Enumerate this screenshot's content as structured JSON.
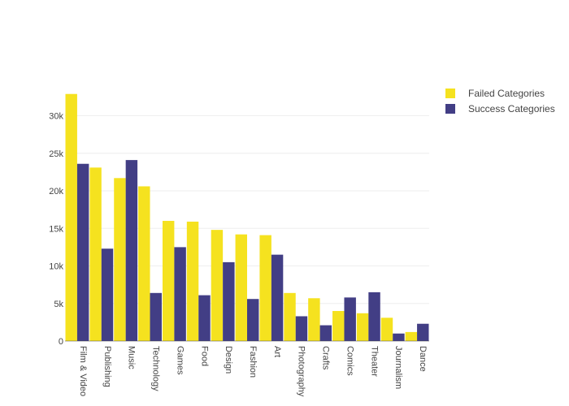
{
  "chart_data": {
    "type": "bar",
    "categories": [
      "Film & Video",
      "Publishing",
      "Music",
      "Technology",
      "Games",
      "Food",
      "Design",
      "Fashion",
      "Art",
      "Photography",
      "Crafts",
      "Comics",
      "Theater",
      "Journalism",
      "Dance"
    ],
    "series": [
      {
        "name": "Failed Categories",
        "color": "#f5e21f",
        "values": [
          32900,
          23100,
          21700,
          20600,
          16000,
          15900,
          14800,
          14200,
          14100,
          6400,
          5700,
          4000,
          3700,
          3100,
          1200
        ]
      },
      {
        "name": "Success Categories",
        "color": "#423e85",
        "values": [
          23600,
          12300,
          24100,
          6400,
          12500,
          6100,
          10500,
          5600,
          11500,
          3300,
          2100,
          5800,
          6500,
          1000,
          2300
        ]
      }
    ],
    "yticks": [
      0,
      5000,
      10000,
      15000,
      20000,
      25000,
      30000
    ],
    "ytick_labels": [
      "0",
      "5k",
      "10k",
      "15k",
      "20k",
      "25k",
      "30k"
    ],
    "ylim": [
      0,
      34600
    ],
    "grid": true,
    "legend_position": "top-right",
    "title": "",
    "xlabel": "",
    "ylabel": ""
  }
}
